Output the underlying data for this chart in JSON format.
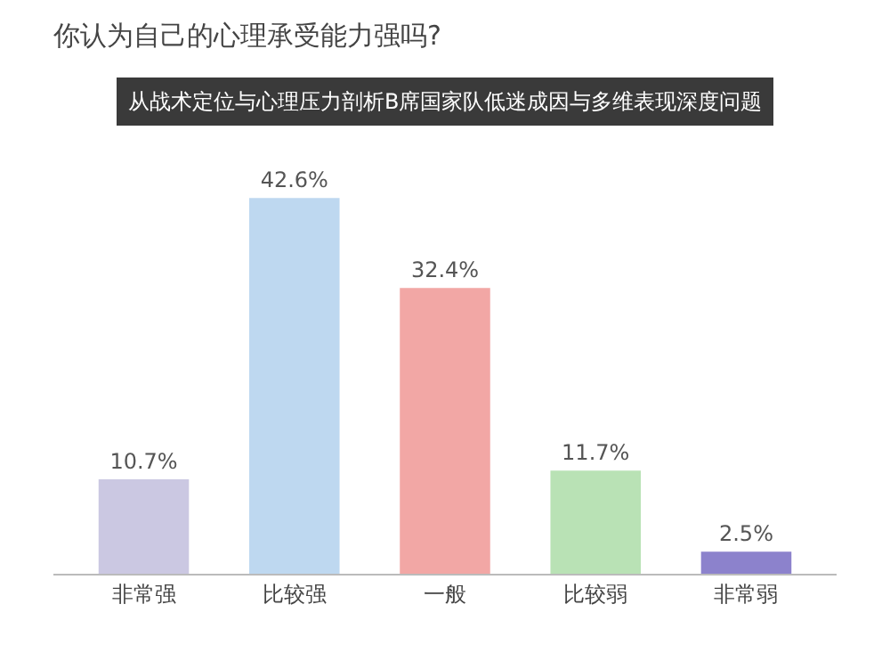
{
  "chart_data": {
    "type": "bar",
    "title": "你认为自己的心理承受能力强吗?",
    "subtitle": "从战术定位与心理压力剖析B席国家队低迷成因与多维表现深度问题",
    "categories": [
      "非常强",
      "比较强",
      "一般",
      "比较弱",
      "非常弱"
    ],
    "values": [
      10.7,
      42.6,
      32.4,
      11.7,
      2.5
    ],
    "value_labels": [
      "10.7%",
      "42.6%",
      "32.4%",
      "11.7%",
      "2.5%"
    ],
    "colors": [
      "#cbc8e2",
      "#bed8f0",
      "#f2a7a5",
      "#b9e2b5",
      "#8c82cc"
    ],
    "grid": false
  }
}
